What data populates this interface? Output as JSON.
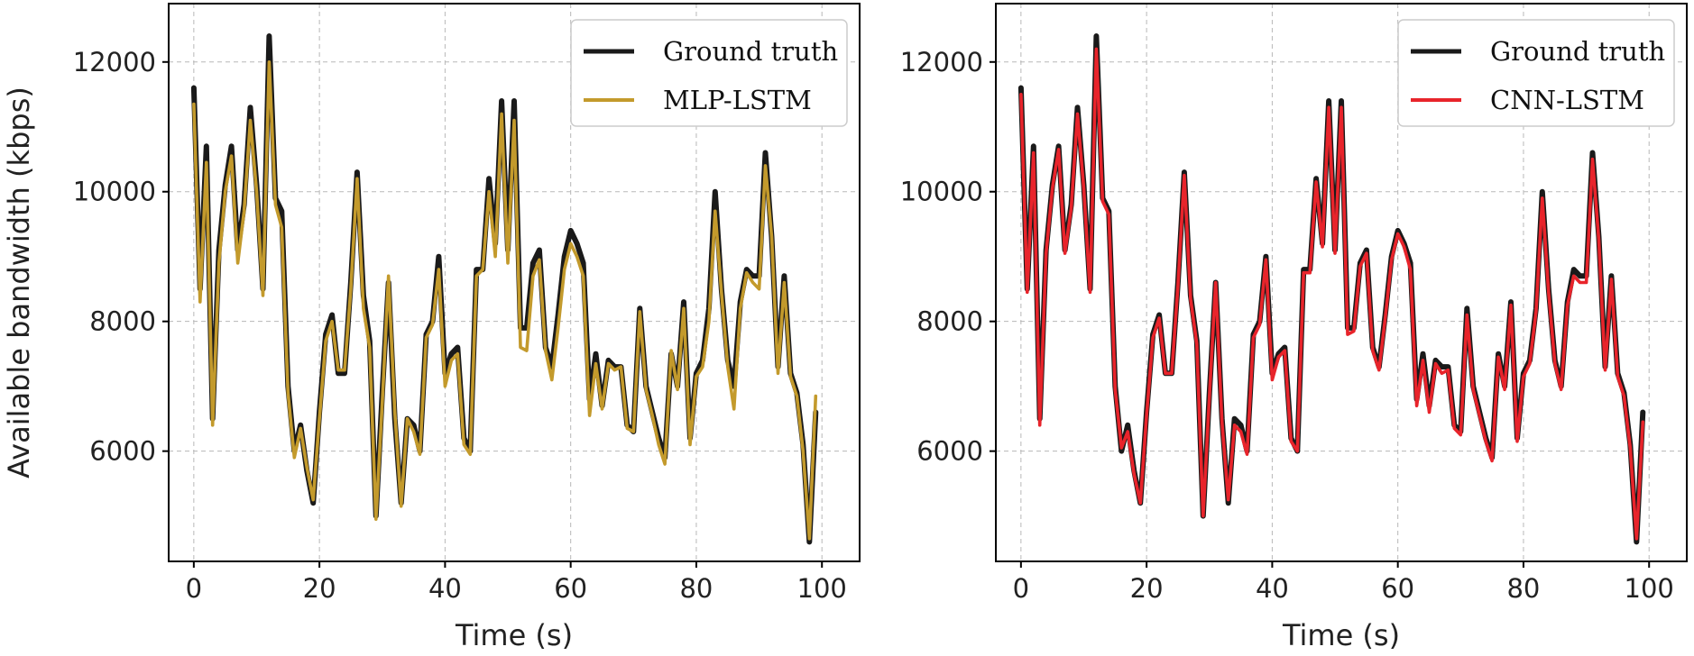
{
  "chart_data": [
    {
      "type": "line",
      "xlabel": "Time (s)",
      "ylabel": "Available bandwidth (kbps)",
      "xlim": [
        -4,
        106
      ],
      "ylim": [
        4300,
        12900
      ],
      "xticks": [
        0,
        20,
        40,
        60,
        80,
        100
      ],
      "yticks": [
        6000,
        8000,
        10000,
        12000
      ],
      "grid": true,
      "legend_position": "top-right",
      "series": [
        {
          "name": "Ground truth",
          "color": "#1a1a1a",
          "x": [
            0,
            1,
            2,
            3,
            4,
            5,
            6,
            7,
            8,
            9,
            10,
            11,
            12,
            13,
            14,
            15,
            16,
            17,
            18,
            19,
            20,
            21,
            22,
            23,
            24,
            25,
            26,
            27,
            28,
            29,
            30,
            31,
            32,
            33,
            34,
            35,
            36,
            37,
            38,
            39,
            40,
            41,
            42,
            43,
            44,
            45,
            46,
            47,
            48,
            49,
            50,
            51,
            52,
            53,
            54,
            55,
            56,
            57,
            58,
            59,
            60,
            61,
            62,
            63,
            64,
            65,
            66,
            67,
            68,
            69,
            70,
            71,
            72,
            73,
            74,
            75,
            76,
            77,
            78,
            79,
            80,
            81,
            82,
            83,
            84,
            85,
            86,
            87,
            88,
            89,
            90,
            91,
            92,
            93,
            94,
            95,
            96,
            97,
            98,
            99
          ],
          "values": [
            11600,
            8500,
            10700,
            6500,
            9100,
            10100,
            10700,
            9100,
            9800,
            11300,
            10100,
            8500,
            12400,
            9900,
            9700,
            7000,
            6000,
            6400,
            5700,
            5200,
            6600,
            7800,
            8100,
            7200,
            7200,
            8600,
            10300,
            8400,
            7700,
            5000,
            6900,
            8600,
            6500,
            5200,
            6500,
            6400,
            6000,
            7800,
            8000,
            9000,
            7200,
            7500,
            7600,
            6200,
            6000,
            8800,
            8800,
            10200,
            9200,
            11400,
            9100,
            11400,
            7900,
            7900,
            8900,
            9100,
            7600,
            7300,
            8100,
            9000,
            9400,
            9200,
            8900,
            6800,
            7500,
            6700,
            7400,
            7300,
            7300,
            6400,
            6300,
            8200,
            7000,
            6600,
            6200,
            5900,
            7500,
            7000,
            8300,
            6200,
            7200,
            7400,
            8200,
            10000,
            8500,
            7400,
            7000,
            8300,
            8800,
            8700,
            8700,
            10600,
            9300,
            7300,
            8700,
            7200,
            6900,
            6100,
            4600,
            6600
          ]
        },
        {
          "name": "MLP-LSTM",
          "color": "#c39a2c",
          "x": [
            0,
            1,
            2,
            3,
            4,
            5,
            6,
            7,
            8,
            9,
            10,
            11,
            12,
            13,
            14,
            15,
            16,
            17,
            18,
            19,
            20,
            21,
            22,
            23,
            24,
            25,
            26,
            27,
            28,
            29,
            30,
            31,
            32,
            33,
            34,
            35,
            36,
            37,
            38,
            39,
            40,
            41,
            42,
            43,
            44,
            45,
            46,
            47,
            48,
            49,
            50,
            51,
            52,
            53,
            54,
            55,
            56,
            57,
            58,
            59,
            60,
            61,
            62,
            63,
            64,
            65,
            66,
            67,
            68,
            69,
            70,
            71,
            72,
            73,
            74,
            75,
            76,
            77,
            78,
            79,
            80,
            81,
            82,
            83,
            84,
            85,
            86,
            87,
            88,
            89,
            90,
            91,
            92,
            93,
            94,
            95,
            96,
            97,
            98,
            99
          ],
          "values": [
            11350,
            8300,
            10450,
            6400,
            8900,
            10000,
            10550,
            8900,
            9700,
            11100,
            10000,
            8400,
            12000,
            9800,
            9450,
            6900,
            5900,
            6350,
            5750,
            5250,
            6500,
            7700,
            8000,
            7250,
            7250,
            8500,
            10200,
            8200,
            7600,
            4950,
            6750,
            8700,
            6600,
            5150,
            6500,
            6300,
            5950,
            7750,
            7950,
            8800,
            7000,
            7400,
            7500,
            6100,
            5950,
            8700,
            8800,
            10000,
            9000,
            11200,
            8900,
            11100,
            7600,
            7550,
            8700,
            8950,
            7550,
            7100,
            7900,
            8800,
            9200,
            9000,
            8700,
            6550,
            7350,
            6650,
            7350,
            7250,
            7300,
            6350,
            6300,
            8150,
            6950,
            6550,
            6100,
            5800,
            7550,
            6950,
            8200,
            6100,
            7150,
            7300,
            8000,
            9700,
            8450,
            7300,
            6650,
            8200,
            8750,
            8600,
            8500,
            10400,
            9300,
            7200,
            8600,
            7150,
            6850,
            6000,
            4650,
            6850
          ]
        }
      ]
    },
    {
      "type": "line",
      "xlabel": "Time (s)",
      "ylabel": "",
      "xlim": [
        -4,
        106
      ],
      "ylim": [
        4300,
        12900
      ],
      "xticks": [
        0,
        20,
        40,
        60,
        80,
        100
      ],
      "yticks": [
        6000,
        8000,
        10000,
        12000
      ],
      "grid": true,
      "legend_position": "top-right",
      "series": [
        {
          "name": "Ground truth",
          "color": "#1a1a1a",
          "x": [
            0,
            1,
            2,
            3,
            4,
            5,
            6,
            7,
            8,
            9,
            10,
            11,
            12,
            13,
            14,
            15,
            16,
            17,
            18,
            19,
            20,
            21,
            22,
            23,
            24,
            25,
            26,
            27,
            28,
            29,
            30,
            31,
            32,
            33,
            34,
            35,
            36,
            37,
            38,
            39,
            40,
            41,
            42,
            43,
            44,
            45,
            46,
            47,
            48,
            49,
            50,
            51,
            52,
            53,
            54,
            55,
            56,
            57,
            58,
            59,
            60,
            61,
            62,
            63,
            64,
            65,
            66,
            67,
            68,
            69,
            70,
            71,
            72,
            73,
            74,
            75,
            76,
            77,
            78,
            79,
            80,
            81,
            82,
            83,
            84,
            85,
            86,
            87,
            88,
            89,
            90,
            91,
            92,
            93,
            94,
            95,
            96,
            97,
            98,
            99
          ],
          "values": [
            11600,
            8500,
            10700,
            6500,
            9100,
            10100,
            10700,
            9100,
            9800,
            11300,
            10100,
            8500,
            12400,
            9900,
            9700,
            7000,
            6000,
            6400,
            5700,
            5200,
            6600,
            7800,
            8100,
            7200,
            7200,
            8600,
            10300,
            8400,
            7700,
            5000,
            6900,
            8600,
            6500,
            5200,
            6500,
            6400,
            6000,
            7800,
            8000,
            9000,
            7200,
            7500,
            7600,
            6200,
            6000,
            8800,
            8800,
            10200,
            9200,
            11400,
            9100,
            11400,
            7900,
            7900,
            8900,
            9100,
            7600,
            7300,
            8100,
            9000,
            9400,
            9200,
            8900,
            6800,
            7500,
            6700,
            7400,
            7300,
            7300,
            6400,
            6300,
            8200,
            7000,
            6600,
            6200,
            5900,
            7500,
            7000,
            8300,
            6200,
            7200,
            7400,
            8200,
            10000,
            8500,
            7400,
            7000,
            8300,
            8800,
            8700,
            8700,
            10600,
            9300,
            7300,
            8700,
            7200,
            6900,
            6100,
            4600,
            6600
          ]
        },
        {
          "name": "CNN-LSTM",
          "color": "#e8242b",
          "x": [
            0,
            1,
            2,
            3,
            4,
            5,
            6,
            7,
            8,
            9,
            10,
            11,
            12,
            13,
            14,
            15,
            16,
            17,
            18,
            19,
            20,
            21,
            22,
            23,
            24,
            25,
            26,
            27,
            28,
            29,
            30,
            31,
            32,
            33,
            34,
            35,
            36,
            37,
            38,
            39,
            40,
            41,
            42,
            43,
            44,
            45,
            46,
            47,
            48,
            49,
            50,
            51,
            52,
            53,
            54,
            55,
            56,
            57,
            58,
            59,
            60,
            61,
            62,
            63,
            64,
            65,
            66,
            67,
            68,
            69,
            70,
            71,
            72,
            73,
            74,
            75,
            76,
            77,
            78,
            79,
            80,
            81,
            82,
            83,
            84,
            85,
            86,
            87,
            88,
            89,
            90,
            91,
            92,
            93,
            94,
            95,
            96,
            97,
            98,
            99
          ],
          "values": [
            11500,
            8450,
            10600,
            6400,
            9050,
            10050,
            10650,
            9050,
            9750,
            11200,
            10050,
            8450,
            12200,
            9850,
            9650,
            6950,
            6050,
            6300,
            5650,
            5200,
            6550,
            7750,
            8050,
            7200,
            7200,
            8550,
            10250,
            8350,
            7650,
            5000,
            6850,
            8600,
            6450,
            5250,
            6400,
            6300,
            5950,
            7750,
            7950,
            8950,
            7100,
            7450,
            7550,
            6150,
            6000,
            8750,
            8750,
            10150,
            9150,
            11300,
            9050,
            11300,
            7800,
            7850,
            8850,
            9050,
            7550,
            7250,
            8050,
            8950,
            9350,
            9150,
            8800,
            6700,
            7400,
            6600,
            7350,
            7200,
            7250,
            6350,
            6250,
            8100,
            6950,
            6550,
            6150,
            5850,
            7450,
            6950,
            8250,
            6150,
            7150,
            7350,
            8150,
            9900,
            8450,
            7350,
            6950,
            8250,
            8700,
            8600,
            8600,
            10500,
            9250,
            7250,
            8650,
            7150,
            6850,
            6050,
            4650,
            6450
          ]
        }
      ]
    }
  ]
}
